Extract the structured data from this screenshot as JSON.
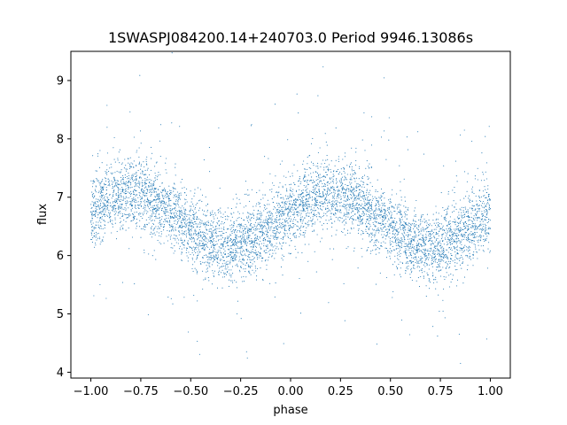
{
  "chart_data": {
    "type": "scatter",
    "title": "1SWASPJ084200.14+240703.0 Period 9946.13086s",
    "xlabel": "phase",
    "ylabel": "flux",
    "xlim": [
      -1.1,
      1.1
    ],
    "ylim": [
      3.9,
      9.5
    ],
    "xticks": [
      -1.0,
      -0.75,
      -0.5,
      -0.25,
      0.0,
      0.25,
      0.5,
      0.75,
      1.0
    ],
    "xtick_labels": [
      "−1.00",
      "−0.75",
      "−0.50",
      "−0.25",
      "0.00",
      "0.25",
      "0.50",
      "0.75",
      "1.00"
    ],
    "yticks": [
      4,
      5,
      6,
      7,
      8,
      9
    ],
    "ytick_labels": [
      "4",
      "5",
      "6",
      "7",
      "8",
      "9"
    ],
    "grid": false,
    "point_color": "#1f77b4",
    "series": [
      {
        "phase_range": [
          -1.0,
          1.0
        ],
        "model": {
          "mean_flux": 6.62,
          "amplitude": 0.45,
          "peak_phase": 0.2,
          "period_in_phase": 1.0,
          "scatter_sigma": 0.3
        },
        "n_points": 6000
      }
    ]
  }
}
